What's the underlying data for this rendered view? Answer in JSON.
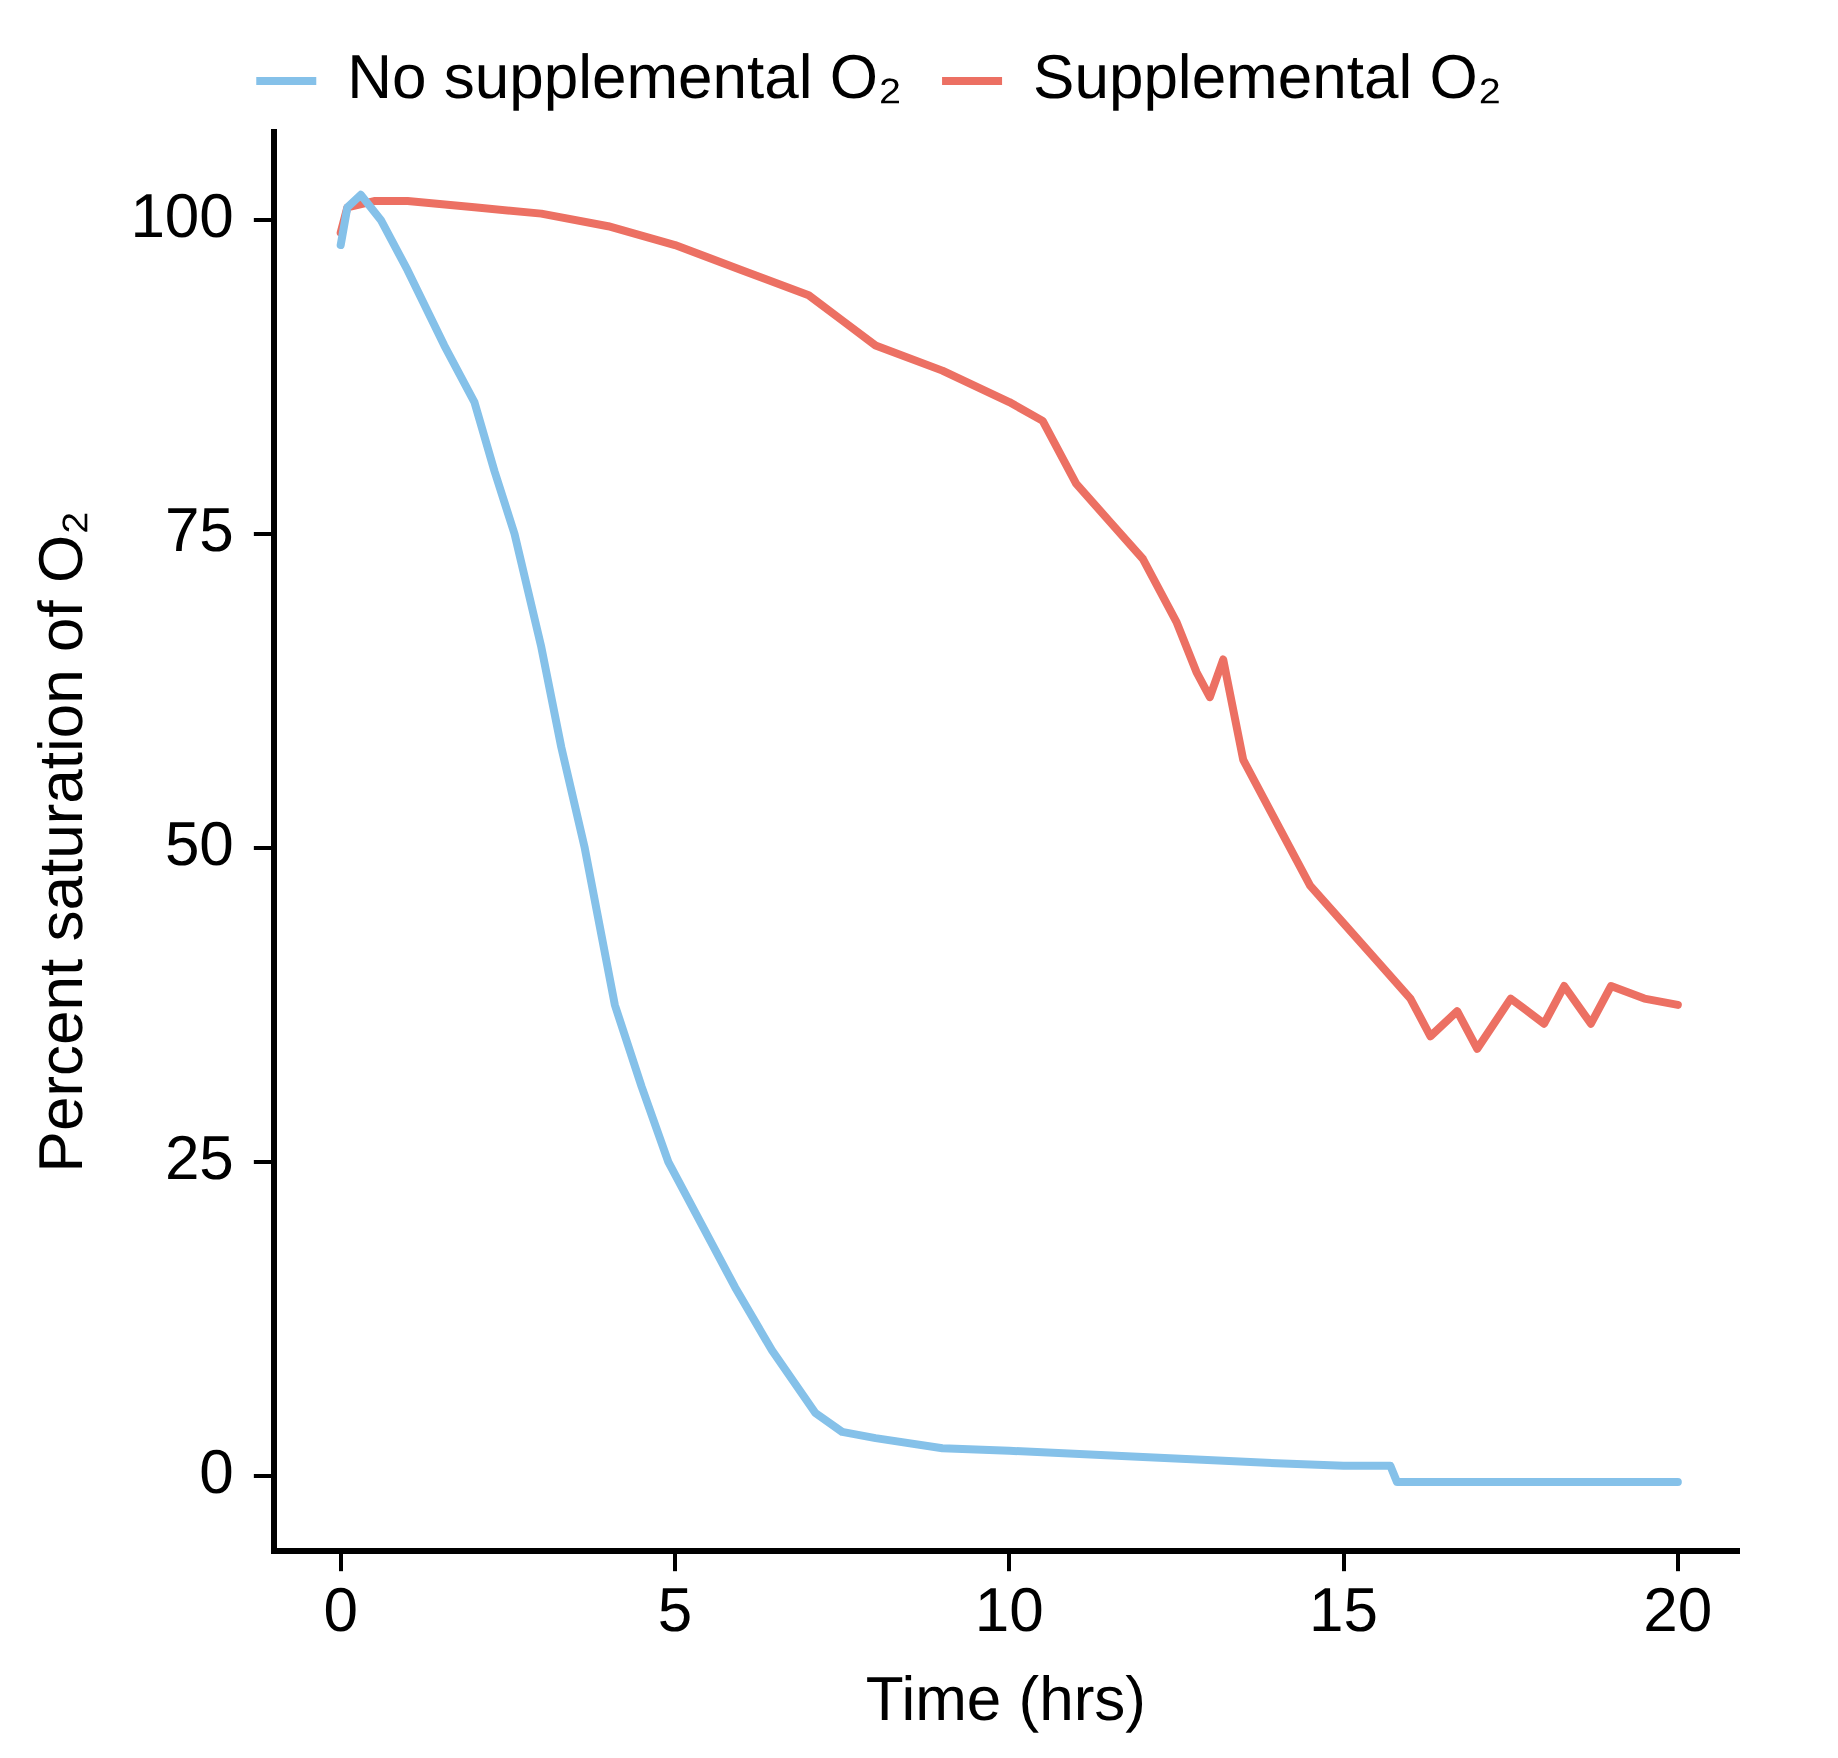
{
  "chart_data": {
    "type": "line",
    "xlabel": "Time (hrs)",
    "ylabel": "Percent saturation of O₂",
    "xlim": [
      -1,
      20.9
    ],
    "xticks": [
      0,
      5,
      10,
      15,
      20
    ],
    "ylim": [
      -6,
      107
    ],
    "yticks": [
      0,
      25,
      50,
      75,
      100
    ],
    "grid": false,
    "legend": "top",
    "marker": "none",
    "line_style": "solid",
    "series": [
      {
        "name": "No supplemental O₂",
        "color": "#85c1e9",
        "x": [
          0,
          0.1,
          0.3,
          0.6,
          1,
          1.55,
          2,
          2.3,
          2.6,
          3,
          3.3,
          3.65,
          4.1,
          4.5,
          4.9,
          5.4,
          5.9,
          6.45,
          7.1,
          7.5,
          8,
          9,
          10,
          12,
          14,
          15,
          15.7,
          15.8,
          17,
          20
        ],
        "values": [
          98,
          101,
          102,
          100,
          96,
          90,
          85.5,
          80,
          75,
          66,
          58,
          50,
          37.5,
          31,
          25,
          20,
          15,
          10,
          5,
          3.5,
          3,
          2.2,
          2,
          1.5,
          1,
          0.8,
          0.8,
          -0.5,
          -0.5,
          -0.5
        ]
      },
      {
        "name": "Supplemental O₂",
        "color": "#ec7063",
        "x": [
          0,
          0.1,
          0.5,
          1,
          2,
          3,
          4,
          5,
          6,
          7,
          7.5,
          8,
          9,
          10,
          10.5,
          11,
          11.5,
          12,
          12.5,
          12.8,
          13,
          13.2,
          13.5,
          14,
          14.5,
          15,
          15.5,
          16,
          16.3,
          16.7,
          17,
          17.5,
          18,
          18.3,
          18.7,
          19,
          19.5,
          20
        ],
        "values": [
          99,
          101,
          101.5,
          101.5,
          101,
          100.5,
          99.5,
          98,
          96,
          94,
          92,
          90,
          88,
          85.5,
          84,
          79,
          76,
          73,
          68,
          64,
          62,
          65,
          57,
          52,
          47,
          44,
          41,
          38,
          35,
          37,
          34,
          38,
          36,
          39,
          36,
          39,
          38,
          37.5
        ]
      }
    ]
  }
}
